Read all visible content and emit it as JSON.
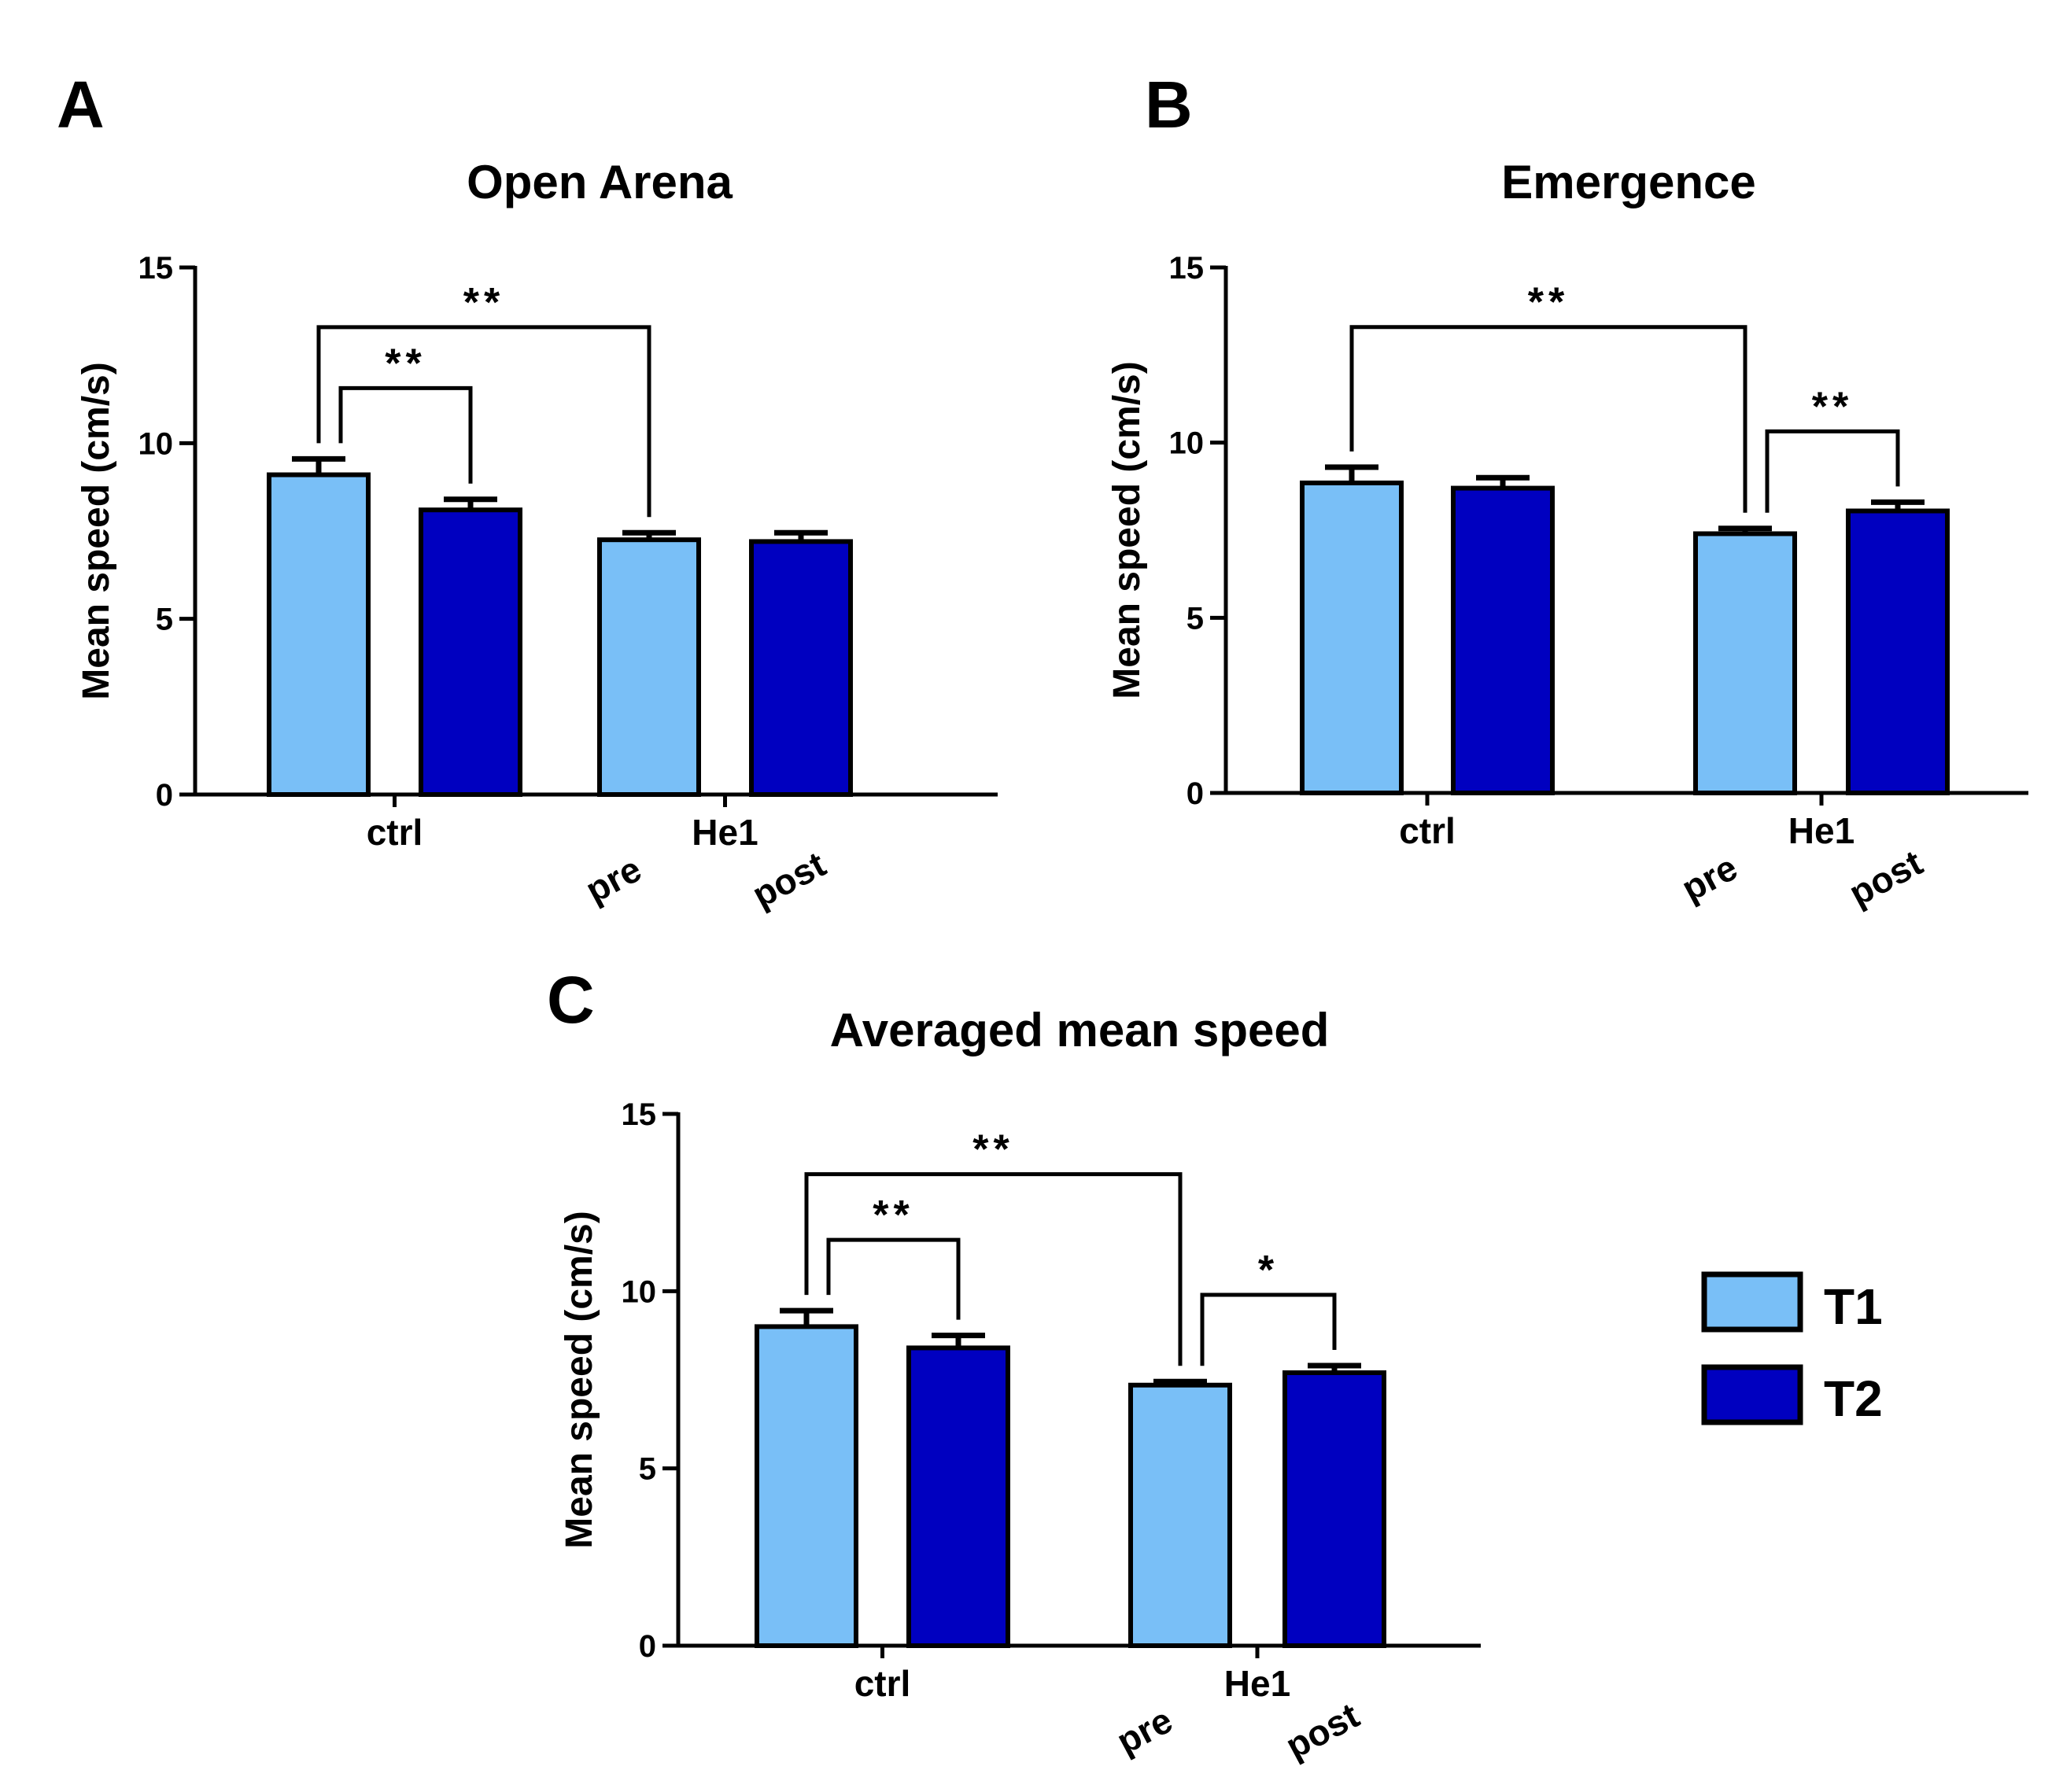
{
  "colors": {
    "T1": "#79bff7",
    "T2": "#0000c0",
    "stroke": "#000000"
  },
  "legend": {
    "items": [
      {
        "label": "T1",
        "color": "#79bff7"
      },
      {
        "label": "T2",
        "color": "#0000c0"
      }
    ]
  },
  "chart_data": [
    {
      "panel": "A",
      "type": "bar",
      "title": "Open Arena",
      "ylabel": "Mean speed (cm/s)",
      "ylim": [
        0,
        15
      ],
      "yticks": [
        0,
        5,
        10,
        15
      ],
      "groups": [
        "ctrl",
        "He1"
      ],
      "sublabels": [
        "pre",
        "post"
      ],
      "series": [
        {
          "name": "T1",
          "values": [
            9.1,
            7.25
          ],
          "errors": [
            0.45,
            0.2
          ]
        },
        {
          "name": "T2",
          "values": [
            8.1,
            7.2
          ],
          "errors": [
            0.3,
            0.25
          ]
        }
      ],
      "significance": [
        {
          "from": [
            0,
            0
          ],
          "to": [
            1,
            0
          ],
          "label": "**"
        },
        {
          "from": [
            0,
            0
          ],
          "to": [
            0,
            1
          ],
          "label": "**"
        }
      ]
    },
    {
      "panel": "B",
      "type": "bar",
      "title": "Emergence",
      "ylabel": "Mean speed (cm/s)",
      "ylim": [
        0,
        15
      ],
      "yticks": [
        0,
        5,
        10,
        15
      ],
      "groups": [
        "ctrl",
        "He1"
      ],
      "sublabels": [
        "pre",
        "post"
      ],
      "series": [
        {
          "name": "T1",
          "values": [
            8.85,
            7.4
          ],
          "errors": [
            0.45,
            0.15
          ]
        },
        {
          "name": "T2",
          "values": [
            8.7,
            8.05
          ],
          "errors": [
            0.3,
            0.25
          ]
        }
      ],
      "significance": [
        {
          "from": [
            0,
            0
          ],
          "to": [
            1,
            0
          ],
          "label": "**"
        },
        {
          "from": [
            1,
            0
          ],
          "to": [
            1,
            1
          ],
          "label": "**"
        }
      ]
    },
    {
      "panel": "C",
      "type": "bar",
      "title": "Averaged mean speed",
      "ylabel": "Mean speed (cm/s)",
      "ylim": [
        0,
        15
      ],
      "yticks": [
        0,
        5,
        10,
        15
      ],
      "groups": [
        "ctrl",
        "He1"
      ],
      "sublabels": [
        "pre",
        "post"
      ],
      "series": [
        {
          "name": "T1",
          "values": [
            9.0,
            7.35
          ],
          "errors": [
            0.45,
            0.1
          ]
        },
        {
          "name": "T2",
          "values": [
            8.4,
            7.7
          ],
          "errors": [
            0.35,
            0.2
          ]
        }
      ],
      "significance": [
        {
          "from": [
            0,
            0
          ],
          "to": [
            1,
            0
          ],
          "label": "**"
        },
        {
          "from": [
            0,
            0
          ],
          "to": [
            0,
            1
          ],
          "label": "**"
        },
        {
          "from": [
            1,
            0
          ],
          "to": [
            1,
            1
          ],
          "label": "*"
        }
      ]
    }
  ]
}
